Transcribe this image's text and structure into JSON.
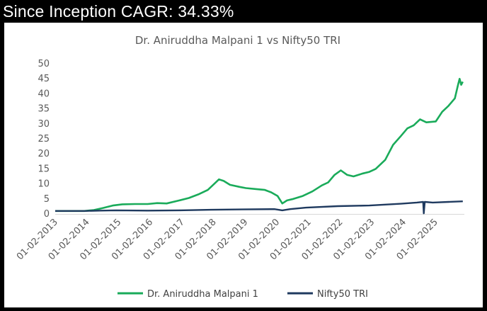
{
  "header": {
    "text": "Since Inception CAGR: 34.33%"
  },
  "colors": {
    "strategy": "#1aab5a",
    "benchmark": "#1f3a5f",
    "tick_text": "#595959"
  },
  "chart_data": {
    "type": "line",
    "title": "Dr. Aniruddha Malpani 1 vs Nifty50 TRI",
    "xlabel": "",
    "ylabel": "",
    "ylim": [
      0,
      50
    ],
    "yticks": [
      "0",
      "5",
      "10",
      "15",
      "20",
      "25",
      "30",
      "35",
      "40",
      "45",
      "50"
    ],
    "xticks": [
      "01-02-2013",
      "01-02-2014",
      "01-02-2015",
      "01-02-2016",
      "01-02-2017",
      "01-02-2018",
      "01-02-2019",
      "01-02-2020",
      "01-02-2021",
      "01-02-2022",
      "01-02-2023",
      "01-02-2024",
      "01-02-2025"
    ],
    "legend_position": "bottom",
    "grid": false,
    "series": [
      {
        "name": "Dr. Aniruddha Malpani 1",
        "color": "#1aab5a",
        "points": [
          [
            2013.08,
            1.0
          ],
          [
            2013.5,
            1.0
          ],
          [
            2014.0,
            1.0
          ],
          [
            2014.3,
            1.3
          ],
          [
            2014.6,
            2.0
          ],
          [
            2014.9,
            2.8
          ],
          [
            2015.2,
            3.2
          ],
          [
            2015.6,
            3.3
          ],
          [
            2016.0,
            3.3
          ],
          [
            2016.3,
            3.6
          ],
          [
            2016.6,
            3.5
          ],
          [
            2017.0,
            4.5
          ],
          [
            2017.3,
            5.3
          ],
          [
            2017.6,
            6.5
          ],
          [
            2017.9,
            8.0
          ],
          [
            2018.1,
            10.0
          ],
          [
            2018.25,
            11.5
          ],
          [
            2018.4,
            11.0
          ],
          [
            2018.6,
            9.7
          ],
          [
            2018.9,
            9.0
          ],
          [
            2019.1,
            8.6
          ],
          [
            2019.4,
            8.3
          ],
          [
            2019.7,
            8.0
          ],
          [
            2019.9,
            7.2
          ],
          [
            2020.1,
            6.0
          ],
          [
            2020.25,
            3.5
          ],
          [
            2020.4,
            4.5
          ],
          [
            2020.6,
            5.0
          ],
          [
            2020.9,
            6.0
          ],
          [
            2021.2,
            7.5
          ],
          [
            2021.5,
            9.5
          ],
          [
            2021.7,
            10.5
          ],
          [
            2021.9,
            13.0
          ],
          [
            2022.1,
            14.5
          ],
          [
            2022.3,
            13.0
          ],
          [
            2022.5,
            12.5
          ],
          [
            2022.8,
            13.5
          ],
          [
            2023.0,
            14.0
          ],
          [
            2023.2,
            15.0
          ],
          [
            2023.5,
            18.0
          ],
          [
            2023.75,
            23.0
          ],
          [
            2024.0,
            26.0
          ],
          [
            2024.2,
            28.5
          ],
          [
            2024.4,
            29.5
          ],
          [
            2024.6,
            31.5
          ],
          [
            2024.8,
            30.5
          ],
          [
            2025.1,
            30.8
          ],
          [
            2025.3,
            34.0
          ],
          [
            2025.5,
            36.0
          ],
          [
            2025.7,
            38.5
          ],
          [
            2025.8,
            43.0
          ],
          [
            2025.85,
            45.0
          ],
          [
            2025.9,
            43.0
          ],
          [
            2025.95,
            44.0
          ]
        ]
      },
      {
        "name": "Nifty50 TRI",
        "color": "#1f3a5f",
        "points": [
          [
            2013.08,
            1.0
          ],
          [
            2014.0,
            1.0
          ],
          [
            2014.5,
            1.1
          ],
          [
            2015.0,
            1.2
          ],
          [
            2016.0,
            1.1
          ],
          [
            2017.0,
            1.2
          ],
          [
            2018.0,
            1.4
          ],
          [
            2019.0,
            1.5
          ],
          [
            2020.0,
            1.6
          ],
          [
            2020.25,
            1.2
          ],
          [
            2020.5,
            1.6
          ],
          [
            2021.0,
            2.1
          ],
          [
            2022.0,
            2.6
          ],
          [
            2023.0,
            2.8
          ],
          [
            2024.0,
            3.4
          ],
          [
            2024.5,
            3.8
          ],
          [
            2024.7,
            4.0
          ],
          [
            2024.72,
            0.2
          ],
          [
            2024.75,
            4.0
          ],
          [
            2025.0,
            3.8
          ],
          [
            2025.5,
            4.0
          ],
          [
            2025.95,
            4.2
          ]
        ]
      }
    ]
  }
}
